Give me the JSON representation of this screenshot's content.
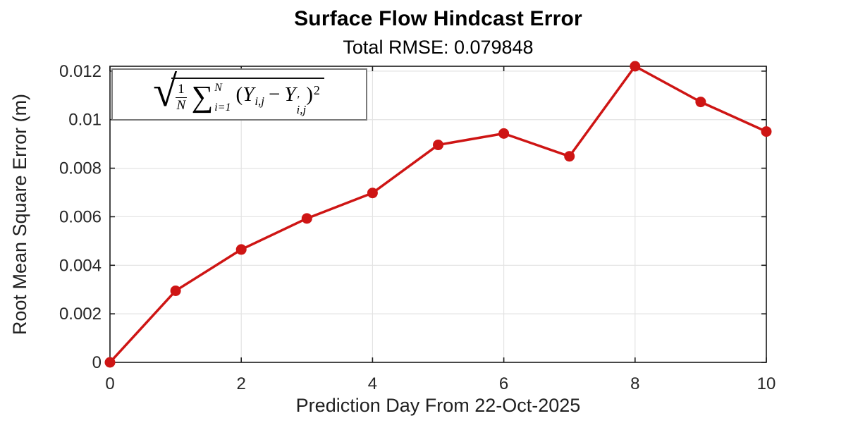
{
  "chart_data": {
    "type": "line",
    "title": "Surface Flow Hindcast Error",
    "subtitle": "Total RMSE: 0.079848",
    "xlabel": "Prediction Day From 22-Oct-2025",
    "ylabel": "Root Mean Square Error (m)",
    "x": [
      0,
      1,
      2,
      3,
      4,
      5,
      6,
      7,
      8,
      9,
      10
    ],
    "y": [
      0.0,
      0.00295,
      0.00465,
      0.00593,
      0.00698,
      0.00896,
      0.00943,
      0.00849,
      0.0122,
      0.01073,
      0.00951
    ],
    "xlim": [
      0,
      10
    ],
    "ylim": [
      0,
      0.0122
    ],
    "xticks": [
      0,
      2,
      4,
      6,
      8,
      10
    ],
    "xtick_labels": [
      "0",
      "2",
      "4",
      "6",
      "8",
      "10"
    ],
    "yticks": [
      0,
      0.002,
      0.004,
      0.006,
      0.008,
      0.01,
      0.012
    ],
    "ytick_labels": [
      "0",
      "0.002",
      "0.004",
      "0.006",
      "0.008",
      "0.01",
      "0.012"
    ],
    "grid": true,
    "legend": "none",
    "line_color": "#ce1514",
    "marker": "filled-circle",
    "marker_radius": 7.5,
    "line_width": 3.5,
    "axis_color": "#1a1a1a",
    "grid_color": "#e3e3e3"
  },
  "formula": {
    "radical": "√",
    "frac_num": "1",
    "frac_den": "N",
    "sum": "∑",
    "sum_upper": "N",
    "sum_lower": "i=1",
    "lparen": "(",
    "var1": "Y",
    "var1_sub": "i,j",
    "minus": "−",
    "var2": "Y",
    "var2_prime": "′",
    "var2_sub": "i,j",
    "rparen": ")",
    "power": "2"
  }
}
